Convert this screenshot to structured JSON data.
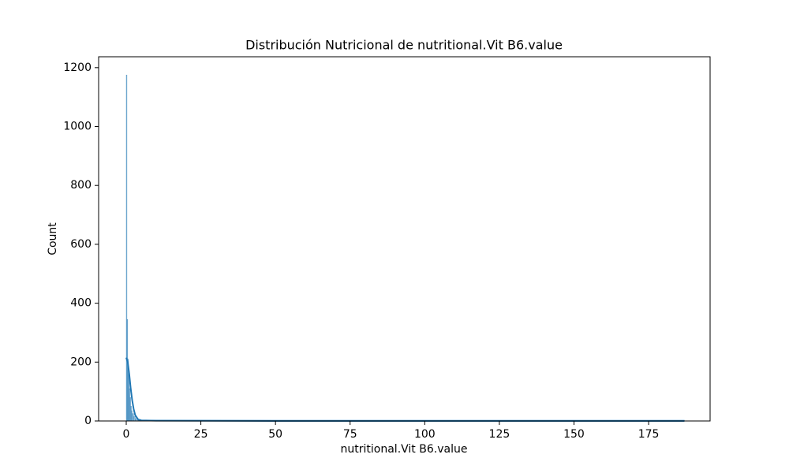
{
  "chart_data": {
    "type": "histogram",
    "title": "Distribución Nutricional de nutritional.Vit B6.value",
    "xlabel": "nutritional.Vit B6.value",
    "ylabel": "Count",
    "bins": [
      0,
      0.25,
      0.5,
      0.75,
      1,
      1.25,
      1.5,
      1.75,
      2,
      2.5,
      3,
      4,
      5,
      187
    ],
    "counts": [
      1175,
      345,
      210,
      160,
      110,
      80,
      50,
      35,
      25,
      15,
      8,
      5,
      3
    ],
    "color": "#1f77b4",
    "kde": {
      "x": [
        0,
        0.5,
        1,
        1.5,
        2,
        2.5,
        3,
        4,
        5,
        10,
        50,
        100,
        187
      ],
      "y": [
        215,
        200,
        160,
        110,
        70,
        40,
        20,
        5,
        2,
        1,
        0,
        0,
        0
      ]
    },
    "xlim": [
      -9.25,
      195.6
    ],
    "ylim": [
      0,
      1237
    ],
    "xticks": [
      0,
      25,
      50,
      75,
      100,
      125,
      150,
      175
    ],
    "yticks": [
      0,
      200,
      400,
      600,
      800,
      1000,
      1200
    ],
    "grid": false
  }
}
